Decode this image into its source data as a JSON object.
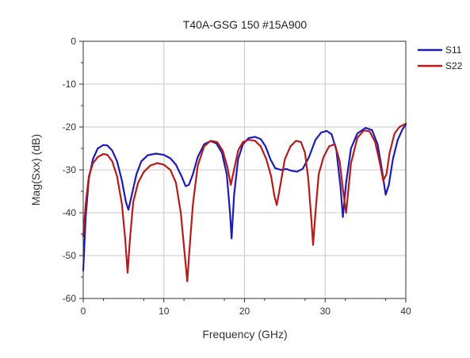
{
  "chart_data": {
    "type": "line",
    "title": "T40A-GSG 150 #15A900",
    "xlabel": "Frequency (GHz)",
    "ylabel": "Mag(Sxx) (dB)",
    "xlim": [
      0,
      40
    ],
    "ylim": [
      -60,
      0
    ],
    "xticks": [
      0,
      10,
      20,
      30,
      40
    ],
    "yticks": [
      0,
      -10,
      -20,
      -30,
      -40,
      -50,
      -60
    ],
    "grid": true,
    "legend_position": "right-top",
    "series": [
      {
        "name": "S11",
        "color": "#1c1cb4",
        "x": [
          0,
          0.3,
          0.7,
          1.2,
          1.8,
          2.5,
          3.0,
          3.6,
          4.2,
          4.8,
          5.3,
          5.6,
          6.0,
          6.6,
          7.2,
          8.0,
          9.0,
          10.0,
          10.8,
          11.5,
          12.2,
          12.7,
          13.1,
          13.6,
          14.2,
          15.0,
          15.8,
          16.5,
          17.2,
          17.8,
          18.2,
          18.4,
          18.7,
          19.2,
          19.8,
          20.5,
          21.3,
          22.0,
          22.6,
          23.2,
          23.8,
          24.5,
          25.2,
          25.8,
          26.5,
          27.2,
          28.0,
          28.8,
          29.5,
          30.2,
          30.8,
          31.4,
          31.9,
          32.2,
          32.6,
          33.2,
          34.0,
          35.0,
          35.8,
          36.5,
          37.0,
          37.5,
          37.9,
          38.4,
          39.0,
          39.6,
          40.0
        ],
        "values": [
          -53.5,
          -41.0,
          -32.0,
          -27.5,
          -25.0,
          -24.2,
          -24.3,
          -25.5,
          -28.0,
          -32.5,
          -37.5,
          -39.3,
          -36.0,
          -31.0,
          -28.0,
          -26.6,
          -26.2,
          -26.5,
          -27.3,
          -28.8,
          -31.5,
          -33.8,
          -33.5,
          -31.0,
          -27.0,
          -24.0,
          -23.3,
          -23.8,
          -26.0,
          -31.0,
          -40.0,
          -46.0,
          -36.0,
          -27.5,
          -24.0,
          -22.6,
          -22.3,
          -22.8,
          -24.5,
          -27.5,
          -29.6,
          -30.0,
          -29.8,
          -30.2,
          -30.4,
          -29.8,
          -27.0,
          -23.0,
          -21.3,
          -20.9,
          -21.7,
          -25.5,
          -34.0,
          -41.0,
          -33.0,
          -25.0,
          -21.5,
          -20.2,
          -20.7,
          -24.0,
          -29.5,
          -35.8,
          -33.5,
          -27.5,
          -23.0,
          -20.5,
          -19.4
        ]
      },
      {
        "name": "S22",
        "color": "#b41c1c",
        "x": [
          0,
          0.3,
          0.7,
          1.2,
          1.8,
          2.5,
          3.0,
          3.6,
          4.2,
          4.8,
          5.2,
          5.5,
          5.8,
          6.2,
          6.8,
          7.5,
          8.3,
          9.2,
          10.0,
          10.8,
          11.5,
          12.1,
          12.6,
          12.9,
          13.2,
          13.6,
          14.2,
          15.0,
          15.8,
          16.6,
          17.3,
          17.9,
          18.3,
          18.7,
          19.2,
          19.8,
          20.5,
          21.3,
          22.0,
          22.7,
          23.3,
          23.7,
          24.0,
          24.4,
          25.0,
          25.7,
          26.4,
          27.0,
          27.5,
          27.9,
          28.3,
          28.5,
          28.8,
          29.2,
          29.8,
          30.5,
          31.2,
          31.8,
          32.2,
          32.6,
          33.2,
          34.0,
          34.8,
          35.5,
          36.2,
          36.8,
          37.2,
          37.6,
          38.0,
          38.6,
          39.2,
          39.7,
          40.0
        ],
        "values": [
          -45.5,
          -38.0,
          -31.5,
          -28.5,
          -27.0,
          -26.3,
          -26.5,
          -28.0,
          -31.5,
          -38.0,
          -46.0,
          -54.0,
          -46.0,
          -37.5,
          -33.0,
          -30.5,
          -29.0,
          -28.4,
          -28.8,
          -30.0,
          -33.0,
          -40.0,
          -50.0,
          -56.0,
          -48.0,
          -38.0,
          -29.0,
          -24.5,
          -23.2,
          -23.5,
          -25.5,
          -29.5,
          -33.5,
          -30.0,
          -25.5,
          -23.5,
          -23.0,
          -23.2,
          -24.5,
          -27.5,
          -31.5,
          -36.0,
          -38.2,
          -34.0,
          -27.5,
          -24.5,
          -23.2,
          -23.5,
          -26.0,
          -32.0,
          -42.0,
          -47.5,
          -40.0,
          -31.0,
          -27.0,
          -24.5,
          -24.0,
          -28.0,
          -34.5,
          -40.0,
          -28.5,
          -22.5,
          -20.8,
          -21.0,
          -23.5,
          -28.5,
          -32.5,
          -31.0,
          -26.0,
          -21.5,
          -20.0,
          -19.5,
          -19.2
        ]
      }
    ]
  }
}
